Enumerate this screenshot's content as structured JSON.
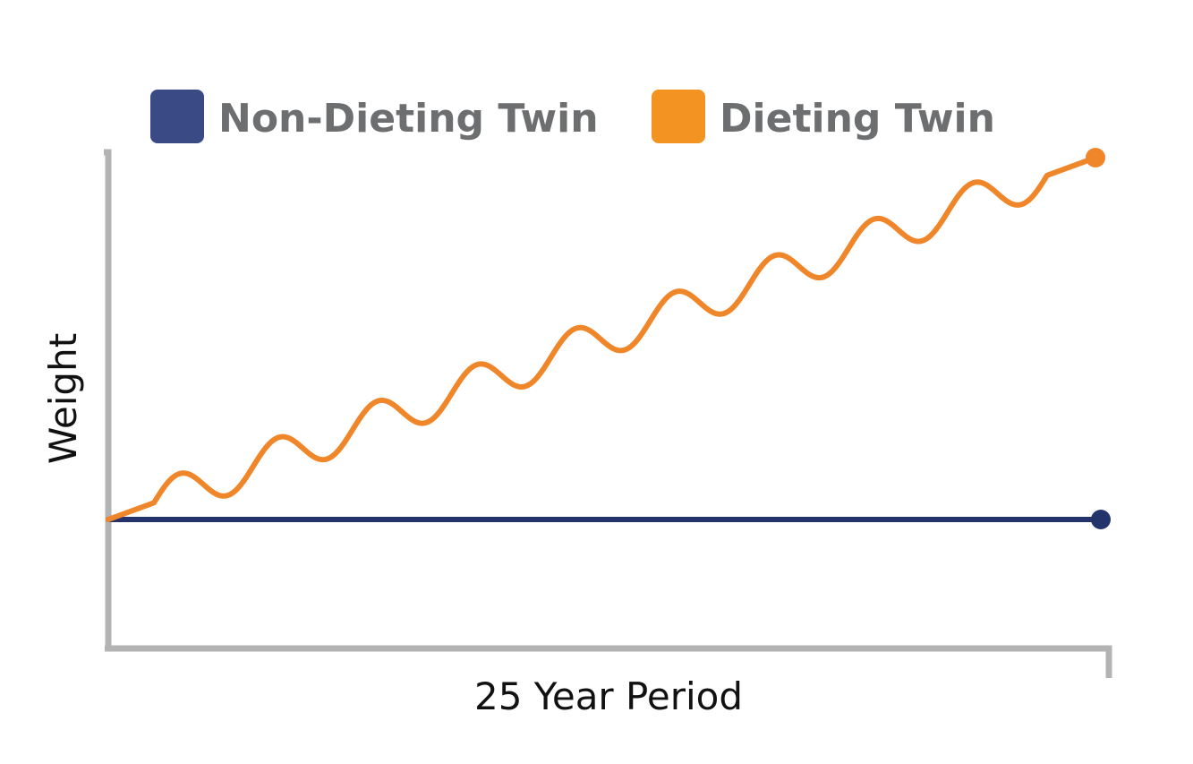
{
  "chart_data": {
    "type": "line",
    "title": "",
    "xlabel": "25 Year Period",
    "ylabel": "Weight",
    "grid": false,
    "legend_position": "top",
    "colors": {
      "non_dieting": "#22346b",
      "dieting": "#f0862a",
      "axis": "#b3b3b3",
      "legend_swatch_non_dieting": "#3a4a84",
      "legend_swatch_dieting": "#f39321"
    },
    "x": [
      0,
      25
    ],
    "series": [
      {
        "name": "Non-Dieting Twin",
        "values": [
          0,
          0
        ]
      },
      {
        "name": "Dieting Twin",
        "values": [
          0,
          100
        ]
      }
    ]
  }
}
